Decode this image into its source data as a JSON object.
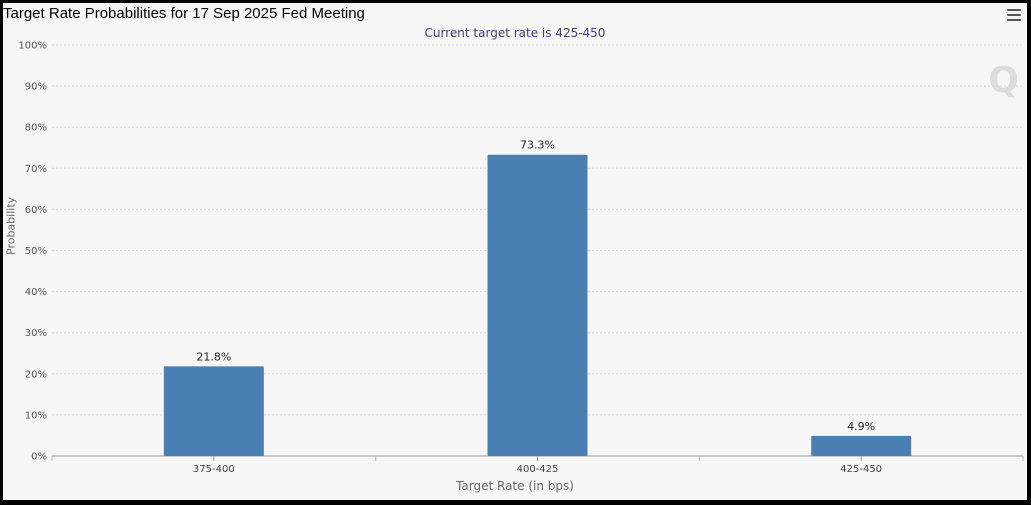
{
  "header": {
    "title": "Target Rate Probabilities for 17 Sep 2025 Fed Meeting",
    "menu_icon": "hamburger-menu-icon",
    "watermark": "Q"
  },
  "chart_data": {
    "type": "bar",
    "title": "Target Rate Probabilities for 17 Sep 2025 Fed Meeting",
    "subtitle": "Current target rate is 425-450",
    "xlabel": "Target Rate (in bps)",
    "ylabel": "Probability",
    "categories": [
      "375-400",
      "400-425",
      "425-450"
    ],
    "values": [
      21.8,
      73.3,
      4.9
    ],
    "data_labels": [
      "21.8%",
      "73.3%",
      "4.9%"
    ],
    "ylim": [
      0,
      100
    ],
    "yticks": [
      0,
      10,
      20,
      30,
      40,
      50,
      60,
      70,
      80,
      90,
      100
    ],
    "ytick_labels": [
      "0%",
      "10%",
      "20%",
      "30%",
      "40%",
      "50%",
      "60%",
      "70%",
      "80%",
      "90%",
      "100%"
    ],
    "grid": true,
    "bar_color": "#4a7fb3"
  }
}
